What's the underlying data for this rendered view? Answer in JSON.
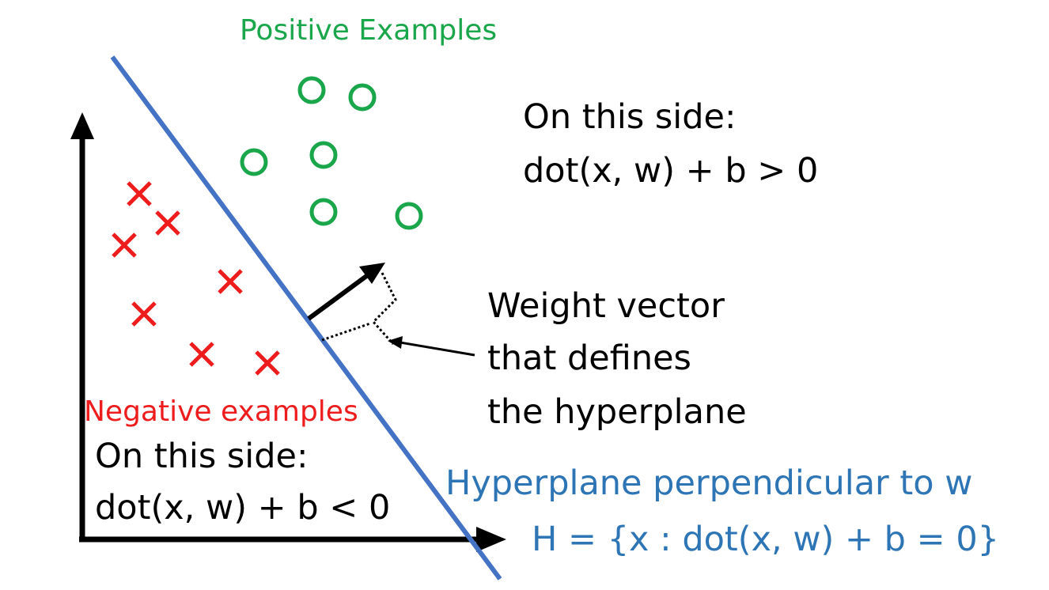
{
  "colors": {
    "positive": "#1aa64a",
    "negative": "#ee1c1c",
    "hyperplane": "#4472c4",
    "hyperplane_text": "#2e75b6",
    "text": "#000000",
    "axis": "#000000"
  },
  "labels": {
    "positive_title": "Positive Examples",
    "positive_side_line1": "On this side:",
    "positive_side_line2": "dot(x, w) + b > 0",
    "weight_line1": "Weight vector",
    "weight_line2": "that defines",
    "weight_line3": "the hyperplane",
    "negative_title": "Negative examples",
    "negative_side_line1": "On this side:",
    "negative_side_line2": "dot(x, w) + b < 0",
    "hyperplane_line1": "Hyperplane perpendicular to w",
    "hyperplane_line2": "H = {x : dot(x, w) + b = 0}"
  },
  "icons": {
    "positive_marker": "circle-icon",
    "negative_marker": "cross-icon"
  }
}
